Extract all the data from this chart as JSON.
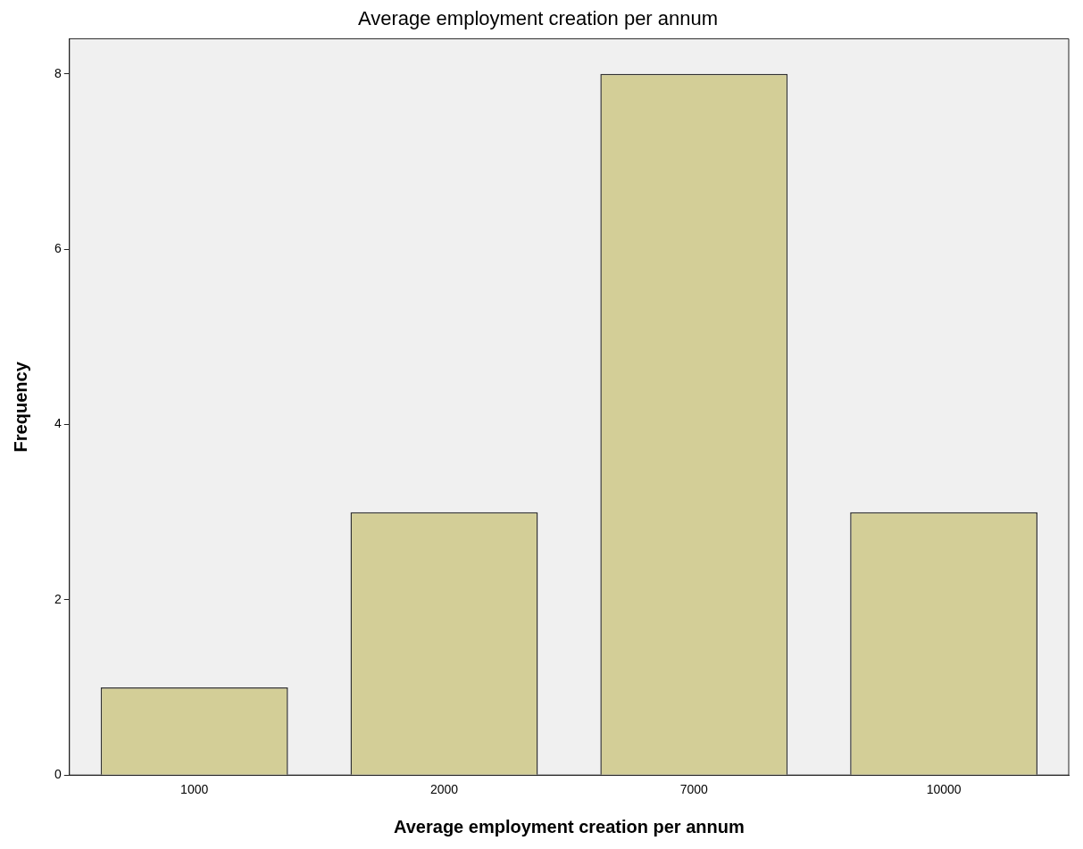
{
  "chart_data": {
    "type": "bar",
    "title": "Average employment creation per annum",
    "xlabel": "Average employment creation per annum",
    "ylabel": "Frequency",
    "categories": [
      "1000",
      "2000",
      "7000",
      "10000"
    ],
    "values": [
      1,
      3,
      8,
      3
    ],
    "color": "#d3ce97",
    "ylim": [
      0,
      8.4
    ],
    "yticks": [
      0,
      2,
      4,
      6,
      8
    ]
  }
}
